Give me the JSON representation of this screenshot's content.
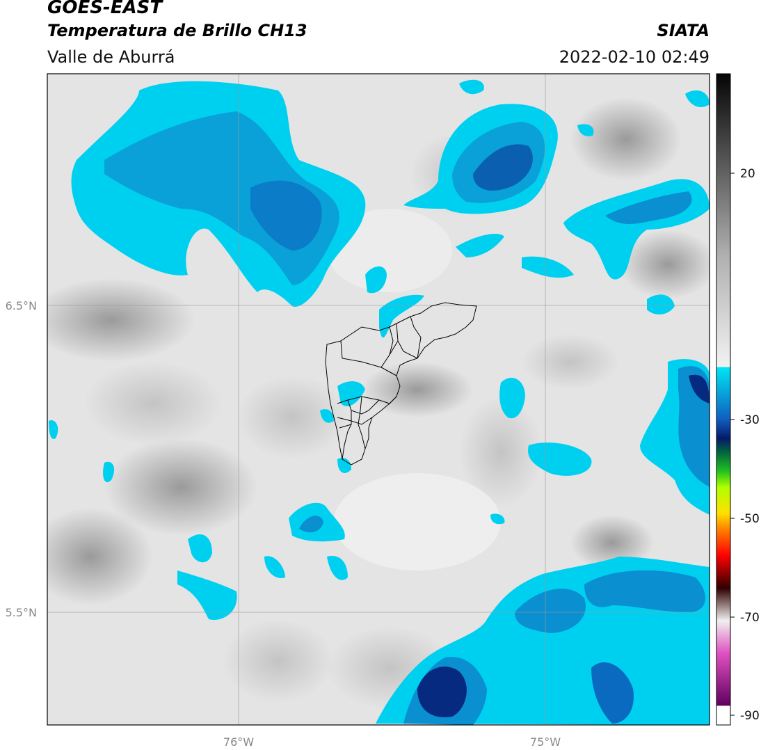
{
  "header": {
    "satellite": "GOES-EAST",
    "product": "Temperatura de Brillo CH13",
    "region": "Valle de Aburrá",
    "organization": "SIATA",
    "timestamp": "2022-02-10 02:49"
  },
  "map": {
    "lat_labels": [
      "6.5°N",
      "5.5°N"
    ],
    "lon_labels": [
      "76°W",
      "75°W"
    ],
    "extent": {
      "lon": [
        -76.62,
        -74.5
      ],
      "lat": [
        5.13,
        7.29
      ]
    },
    "gridlines": {
      "lon": [
        -76.0,
        -75.0
      ],
      "lat": [
        6.5,
        5.5
      ]
    },
    "cold_cloud_color": "#00d0f0",
    "cold_cloud_dark": "#0a4fa0",
    "background_gray": "#d8d8d8",
    "boundary_color": "#000000"
  },
  "colorbar": {
    "ticks": [
      "20",
      "-30",
      "-50",
      "-70",
      "-90"
    ],
    "range_c": [
      35,
      -92
    ]
  }
}
